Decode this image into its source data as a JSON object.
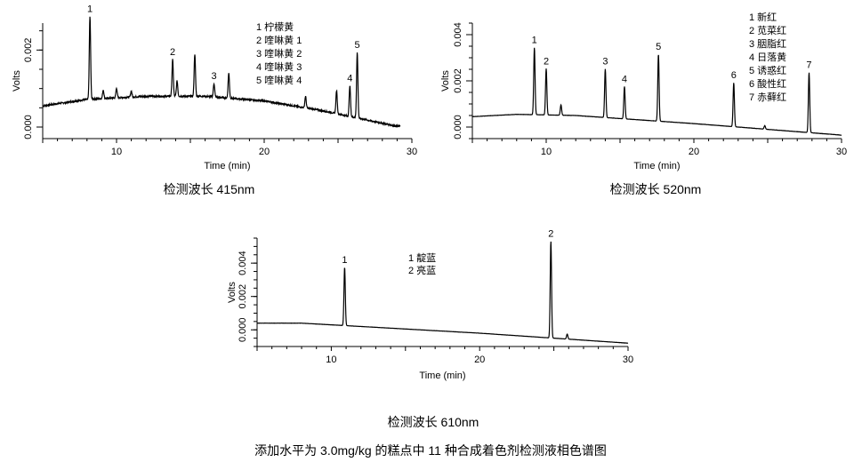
{
  "figure_caption": "添加水平为 3.0mg/kg 的糕点中 11 种合成着色剂检测液相色谱图",
  "chart_data": [
    {
      "type": "line",
      "caption": "检测波长 415nm",
      "xlabel": "Time (min)",
      "ylabel": "Volts",
      "xlim": [
        5,
        30
      ],
      "ylim": [
        -0.0003,
        0.0027
      ],
      "x_ticks": [
        10,
        20,
        30
      ],
      "y_ticks": [
        0.0,
        0.002
      ],
      "y_tick_labels": [
        "0.000",
        "0.002"
      ],
      "baseline": [
        [
          5,
          0.00055
        ],
        [
          8,
          0.00072
        ],
        [
          12,
          0.0008
        ],
        [
          16,
          0.0008
        ],
        [
          20,
          0.00068
        ],
        [
          24,
          0.00042
        ],
        [
          27,
          0.00018
        ],
        [
          29,
          2e-05
        ]
      ],
      "peaks": [
        {
          "x": 8.2,
          "height": 0.00215,
          "label": "1"
        },
        {
          "x": 9.1,
          "height": 0.00022
        },
        {
          "x": 10.0,
          "height": 0.00025
        },
        {
          "x": 11.0,
          "height": 0.00015
        },
        {
          "x": 13.8,
          "height": 0.00095,
          "label": "2"
        },
        {
          "x": 14.1,
          "height": 0.0004
        },
        {
          "x": 15.3,
          "height": 0.0011
        },
        {
          "x": 16.6,
          "height": 0.00035,
          "label": "3"
        },
        {
          "x": 17.6,
          "height": 0.00065
        },
        {
          "x": 22.8,
          "height": 0.0003
        },
        {
          "x": 24.9,
          "height": 0.0006
        },
        {
          "x": 25.8,
          "height": 0.0008,
          "label": "4"
        },
        {
          "x": 26.3,
          "height": 0.0017,
          "label": "5"
        }
      ],
      "legend": [
        "1 柠檬黄",
        "2 喹啉黄 1",
        "3 喹啉黄 2",
        "4 喹啉黄 3",
        "5 喹啉黄 4"
      ]
    },
    {
      "type": "line",
      "caption": "检测波长 520nm",
      "xlabel": "Time (min)",
      "ylabel": "Volts",
      "xlim": [
        5,
        30
      ],
      "ylim": [
        -0.0005,
        0.0045
      ],
      "x_ticks": [
        10,
        20,
        30
      ],
      "y_ticks": [
        0.0,
        0.002,
        0.004
      ],
      "y_tick_labels": [
        "0.000",
        "0.002",
        "0.004"
      ],
      "baseline": [
        [
          5,
          0.00045
        ],
        [
          8,
          0.00055
        ],
        [
          12,
          0.0005
        ],
        [
          20,
          0.00015
        ],
        [
          25,
          -0.0001
        ],
        [
          30,
          -0.00035
        ]
      ],
      "peaks": [
        {
          "x": 9.2,
          "height": 0.0029,
          "label": "1"
        },
        {
          "x": 10.0,
          "height": 0.002,
          "label": "2"
        },
        {
          "x": 11.0,
          "height": 0.00045
        },
        {
          "x": 14.0,
          "height": 0.0021,
          "label": "3"
        },
        {
          "x": 15.3,
          "height": 0.0014,
          "label": "4"
        },
        {
          "x": 17.6,
          "height": 0.0029,
          "label": "5"
        },
        {
          "x": 22.7,
          "height": 0.0019,
          "label": "6"
        },
        {
          "x": 24.8,
          "height": 0.00015
        },
        {
          "x": 27.8,
          "height": 0.0026,
          "label": "7"
        }
      ],
      "legend": [
        "1 新红",
        "2 苋菜红",
        "3 胭脂红",
        "4 日落黄",
        "5 诱惑红",
        "6 酸性红",
        "7 赤藓红"
      ]
    },
    {
      "type": "line",
      "caption": "检测波长 610nm",
      "xlabel": "Time (min)",
      "ylabel": "Volts",
      "xlim": [
        5,
        30
      ],
      "ylim": [
        -0.001,
        0.0055
      ],
      "x_ticks": [
        10,
        20,
        30
      ],
      "y_ticks": [
        0.0,
        0.002,
        0.004
      ],
      "y_tick_labels": [
        "0.000",
        "0.002",
        "0.004"
      ],
      "baseline": [
        [
          5,
          0.0004
        ],
        [
          8,
          0.0004
        ],
        [
          12,
          0.0002
        ],
        [
          20,
          -0.0002
        ],
        [
          25,
          -0.0005
        ],
        [
          30,
          -0.0008
        ]
      ],
      "peaks": [
        {
          "x": 10.9,
          "height": 0.0035,
          "label": "1"
        },
        {
          "x": 24.8,
          "height": 0.0058,
          "label": "2"
        },
        {
          "x": 25.9,
          "height": 0.0003
        }
      ],
      "legend": [
        "1 靛蓝",
        "2 亮蓝"
      ]
    }
  ]
}
